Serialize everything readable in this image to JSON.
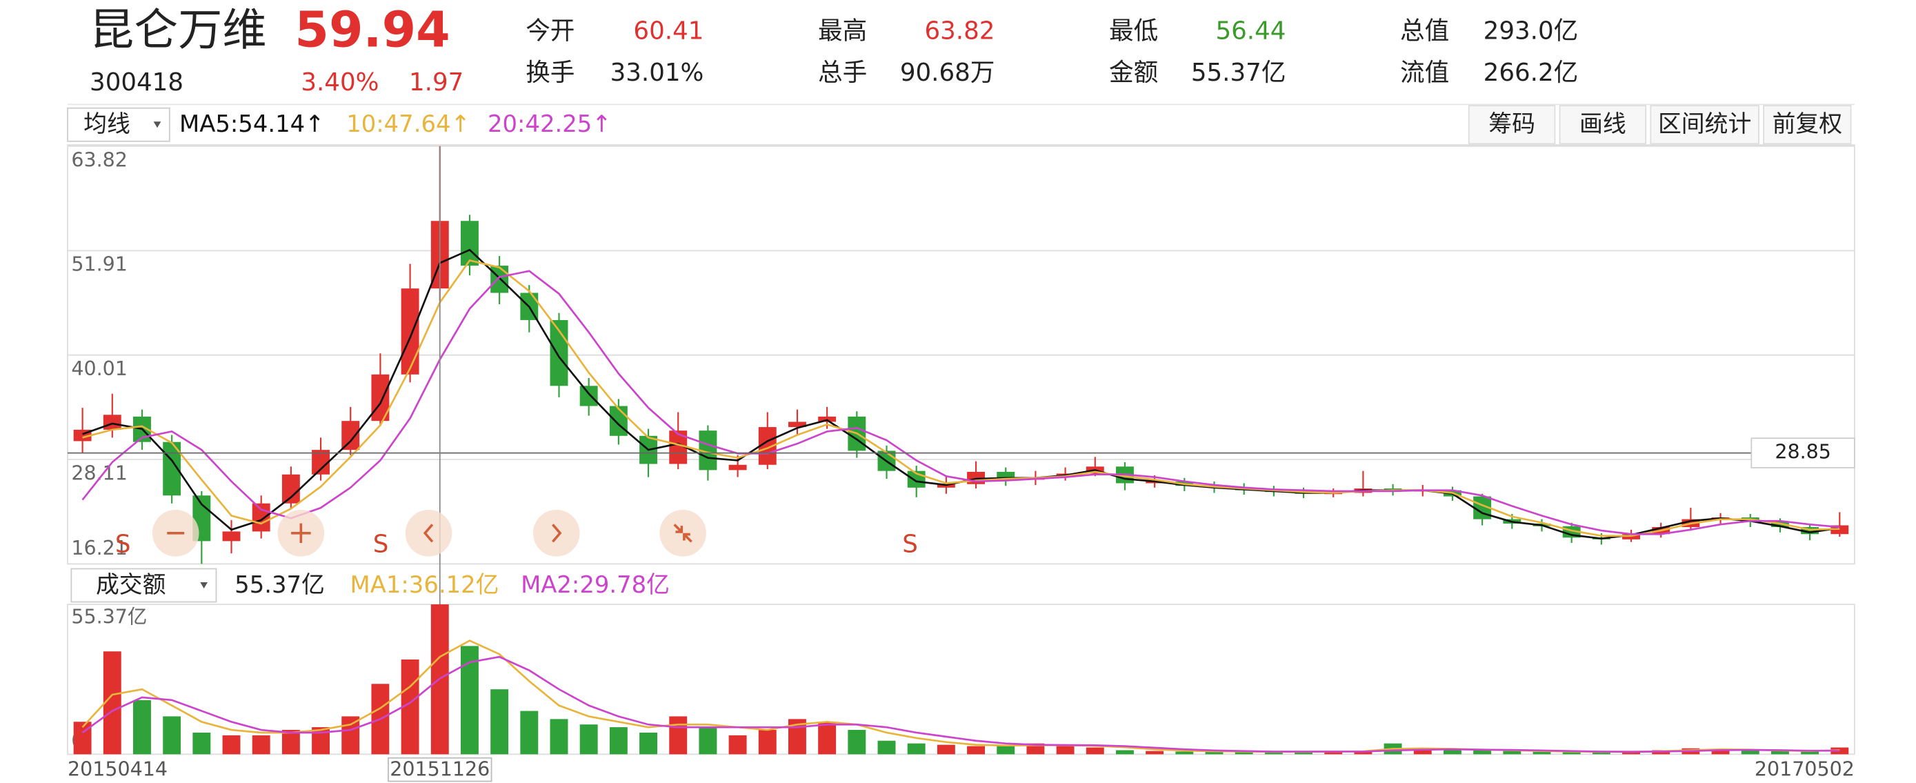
{
  "quote": {
    "name": "昆仑万维",
    "price": "59.94",
    "code": "300418",
    "change_pct": "3.40%",
    "change": "1.97",
    "stats": [
      {
        "label": "今开",
        "value": "60.41",
        "color": "#e0312f"
      },
      {
        "label": "最高",
        "value": "63.82",
        "color": "#e0312f"
      },
      {
        "label": "最低",
        "value": "56.44",
        "color": "#3a9a2a"
      },
      {
        "label": "总值",
        "value": "293.0亿",
        "color": "#222222"
      },
      {
        "label": "换手",
        "value": "33.01%",
        "color": "#222222"
      },
      {
        "label": "总手",
        "value": "90.68万",
        "color": "#222222"
      },
      {
        "label": "金额",
        "value": "55.37亿",
        "color": "#222222"
      },
      {
        "label": "流值",
        "value": "266.2亿",
        "color": "#222222"
      }
    ]
  },
  "toolbar": {
    "ma_select": "均线",
    "buttons": [
      "筹码",
      "画线",
      "区间统计",
      "前复权"
    ],
    "volume_select": "成交额"
  },
  "chart_data": [
    {
      "type": "candlestick",
      "ylim": [
        16.21,
        63.82
      ],
      "yticks": [
        63.82,
        51.91,
        40.01,
        28.11,
        16.21
      ],
      "grid": true,
      "current_price": 28.85,
      "up_color": "#e0312f",
      "down_color": "#2fa23a",
      "annotations": [
        "S",
        "S",
        "S"
      ],
      "open": [
        30.2,
        31.5,
        33.0,
        30.1,
        24.0,
        18.8,
        19.9,
        23.1,
        26.4,
        29.2,
        32.5,
        37.8,
        47.6,
        55.3,
        50.2,
        47.1,
        44.0,
        36.5,
        34.2,
        30.8,
        27.6,
        31.4,
        26.9,
        27.5,
        31.8,
        32.4,
        33.0,
        29.1,
        26.8,
        24.9,
        25.3,
        26.7,
        25.8,
        26.1,
        26.5,
        27.3,
        25.4,
        25.6,
        25.1,
        24.9,
        24.6,
        24.4,
        24.2,
        24.3,
        24.8,
        24.5,
        24.6,
        23.9,
        21.3,
        20.8,
        20.5,
        19.2,
        19.0,
        19.6,
        20.4,
        21.3,
        21.5,
        21.0,
        20.4,
        19.6
      ],
      "high": [
        34.0,
        35.6,
        33.8,
        30.9,
        24.5,
        21.2,
        24.0,
        27.3,
        30.6,
        34.1,
        40.2,
        50.4,
        63.82,
        56.0,
        51.3,
        48.0,
        44.8,
        37.4,
        35.0,
        31.6,
        33.5,
        32.0,
        28.6,
        33.5,
        33.8,
        34.1,
        33.6,
        29.7,
        27.4,
        26.2,
        27.9,
        27.2,
        26.8,
        27.2,
        28.4,
        27.8,
        26.3,
        26.0,
        25.6,
        25.4,
        25.1,
        24.9,
        24.8,
        26.8,
        25.3,
        25.2,
        25.0,
        24.2,
        21.9,
        21.3,
        20.9,
        19.7,
        20.1,
        20.9,
        22.6,
        22.0,
        21.9,
        21.4,
        20.7,
        22.1
      ],
      "low": [
        28.8,
        30.6,
        29.2,
        23.1,
        16.21,
        17.4,
        19.1,
        22.5,
        25.7,
        28.6,
        31.9,
        36.9,
        46.2,
        49.1,
        45.8,
        42.6,
        35.2,
        33.1,
        29.8,
        26.1,
        27.0,
        25.7,
        26.1,
        27.0,
        30.9,
        31.6,
        28.3,
        25.9,
        23.8,
        24.2,
        24.8,
        25.1,
        25.2,
        25.7,
        26.2,
        24.6,
        24.9,
        24.5,
        24.3,
        24.1,
        23.9,
        23.7,
        23.8,
        23.9,
        24.0,
        23.9,
        23.4,
        20.6,
        20.2,
        19.9,
        18.6,
        18.4,
        18.7,
        19.2,
        20.0,
        20.8,
        20.4,
        19.8,
        18.9,
        19.3
      ],
      "close": [
        31.5,
        33.2,
        30.1,
        24.0,
        18.8,
        19.9,
        23.1,
        26.4,
        29.2,
        32.5,
        37.8,
        47.6,
        55.3,
        50.2,
        47.1,
        44.0,
        36.5,
        34.2,
        30.8,
        27.6,
        31.4,
        26.9,
        27.5,
        31.8,
        32.4,
        33.0,
        29.1,
        26.8,
        24.9,
        25.3,
        26.7,
        25.8,
        26.1,
        26.5,
        27.3,
        25.4,
        25.6,
        25.1,
        24.9,
        24.6,
        24.4,
        24.2,
        24.3,
        24.8,
        24.5,
        24.6,
        23.9,
        21.3,
        20.8,
        20.5,
        19.2,
        19.0,
        19.6,
        20.4,
        21.3,
        21.5,
        21.0,
        20.4,
        19.6,
        20.6
      ],
      "series": [
        {
          "name": "MA5:54.14↑",
          "color": "#111111",
          "values": [
            31.0,
            32.2,
            31.6,
            28.0,
            23.0,
            20.1,
            21.2,
            23.8,
            27.0,
            30.2,
            34.5,
            42.0,
            50.5,
            52.0,
            48.8,
            45.5,
            39.8,
            35.6,
            32.1,
            29.2,
            29.9,
            28.3,
            28.0,
            30.2,
            31.7,
            32.6,
            30.4,
            27.9,
            25.6,
            25.2,
            25.9,
            26.0,
            26.0,
            26.3,
            26.9,
            25.9,
            25.6,
            25.2,
            24.9,
            24.7,
            24.5,
            24.3,
            24.3,
            24.6,
            24.6,
            24.6,
            24.2,
            22.0,
            21.0,
            20.6,
            19.5,
            19.1,
            19.5,
            20.3,
            21.1,
            21.4,
            21.1,
            20.5,
            19.8,
            20.3
          ]
        },
        {
          "name": "10:47.64↑",
          "color": "#e8b43c",
          "values": [
            30.6,
            31.5,
            31.9,
            30.0,
            25.8,
            21.7,
            20.8,
            22.5,
            25.0,
            28.4,
            32.0,
            38.5,
            46.0,
            50.8,
            50.0,
            47.3,
            42.8,
            38.0,
            33.9,
            30.6,
            29.8,
            28.9,
            28.3,
            29.4,
            30.9,
            32.1,
            31.1,
            28.9,
            26.5,
            25.4,
            25.7,
            25.9,
            26.0,
            26.2,
            26.7,
            26.2,
            25.8,
            25.3,
            25.0,
            24.8,
            24.6,
            24.4,
            24.3,
            24.5,
            24.6,
            24.6,
            24.3,
            22.9,
            21.6,
            20.9,
            20.0,
            19.4,
            19.4,
            20.0,
            20.8,
            21.3,
            21.3,
            20.8,
            20.1,
            20.2
          ]
        },
        {
          "name": "20:42.25↑",
          "color": "#cc44cc",
          "values": [
            23.5,
            27.8,
            30.6,
            31.3,
            29.2,
            25.6,
            22.4,
            21.4,
            22.6,
            24.9,
            28.0,
            32.8,
            39.5,
            45.3,
            48.9,
            49.6,
            47.0,
            42.6,
            37.9,
            34.0,
            31.0,
            29.8,
            28.8,
            28.8,
            29.9,
            31.3,
            31.7,
            30.3,
            28.0,
            26.2,
            25.6,
            25.7,
            25.9,
            26.1,
            26.4,
            26.4,
            26.1,
            25.6,
            25.2,
            24.9,
            24.7,
            24.6,
            24.5,
            24.5,
            24.5,
            24.6,
            24.6,
            24.0,
            22.8,
            21.7,
            20.7,
            20.0,
            19.6,
            19.6,
            20.1,
            20.7,
            21.1,
            21.1,
            20.7,
            20.4
          ]
        }
      ]
    },
    {
      "type": "bar",
      "current_label": "55.37亿",
      "ylim": [
        0,
        55.37
      ],
      "yticks": [
        {
          "value": 55.37,
          "label": "55.37亿"
        },
        0
      ],
      "categories": [
        "20150414",
        null,
        null,
        null,
        null,
        null,
        null,
        null,
        null,
        null,
        null,
        null,
        "20151126",
        null,
        null,
        null,
        null,
        null,
        null,
        null,
        null,
        null,
        null,
        null,
        null,
        null,
        null,
        null,
        null,
        null,
        null,
        null,
        null,
        null,
        null,
        null,
        null,
        null,
        null,
        null,
        null,
        null,
        null,
        null,
        null,
        null,
        null,
        null,
        null,
        null,
        null,
        null,
        null,
        null,
        null,
        null,
        null,
        null,
        null,
        "20170502"
      ],
      "values": [
        12,
        38,
        20,
        14,
        8,
        7,
        7,
        9,
        10,
        14,
        26,
        35,
        55.37,
        40,
        24,
        16,
        13,
        11,
        10,
        8,
        14,
        10,
        7,
        9,
        13,
        12,
        9,
        5,
        4,
        3.5,
        3,
        3,
        4,
        3,
        2.5,
        1.5,
        1.2,
        1.0,
        1.0,
        0.9,
        0.8,
        1.0,
        1.1,
        1.3,
        4.0,
        1.5,
        1.5,
        1.8,
        1.2,
        0.9,
        0.8,
        0.8,
        1.0,
        1.5,
        2.2,
        1.8,
        1.4,
        1.2,
        1.0,
        2.5
      ],
      "series": [
        {
          "name": "MA1:36.12亿",
          "color": "#e8b43c",
          "values": [
            10,
            22,
            24,
            18,
            12,
            9,
            8,
            8,
            9,
            11,
            17,
            25,
            36,
            42,
            37,
            27,
            18,
            14,
            12,
            10,
            11,
            11,
            10,
            9,
            11,
            12,
            11,
            8,
            6,
            4.5,
            3.5,
            3.2,
            3.3,
            3.3,
            3.1,
            2.6,
            1.8,
            1.3,
            1.1,
            1.0,
            0.9,
            0.9,
            1.0,
            1.1,
            2.0,
            2.2,
            2.0,
            1.7,
            1.5,
            1.2,
            1.0,
            0.9,
            0.9,
            1.1,
            1.5,
            1.8,
            1.7,
            1.4,
            1.2,
            1.5
          ]
        },
        {
          "name": "MA2:29.78亿",
          "color": "#cc44cc",
          "values": [
            8,
            16,
            21,
            20,
            16,
            12,
            9,
            8,
            8,
            9,
            13,
            19,
            28,
            34,
            36,
            31,
            24,
            18,
            14,
            11,
            10,
            10,
            10,
            10,
            10,
            11,
            11,
            10,
            8,
            6.5,
            5,
            4,
            3.5,
            3.4,
            3.3,
            3.0,
            2.4,
            1.8,
            1.4,
            1.2,
            1.0,
            1.0,
            1.0,
            1.0,
            1.4,
            1.7,
            1.8,
            1.7,
            1.6,
            1.4,
            1.2,
            1.0,
            0.9,
            1.0,
            1.2,
            1.5,
            1.6,
            1.5,
            1.3,
            1.3
          ]
        }
      ]
    }
  ]
}
